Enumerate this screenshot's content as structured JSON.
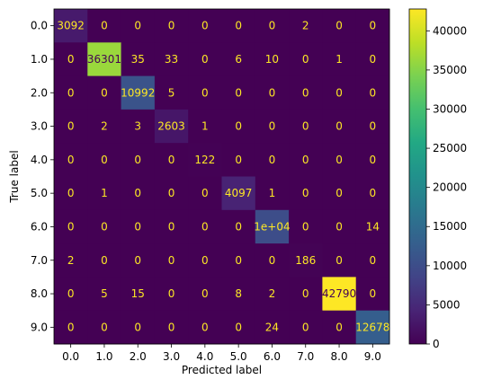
{
  "chart_data": {
    "type": "heatmap",
    "title": "",
    "xlabel": "Predicted label",
    "ylabel": "True label",
    "x_categories": [
      "0.0",
      "1.0",
      "2.0",
      "3.0",
      "4.0",
      "5.0",
      "6.0",
      "7.0",
      "8.0",
      "9.0"
    ],
    "y_categories": [
      "0.0",
      "1.0",
      "2.0",
      "3.0",
      "4.0",
      "5.0",
      "6.0",
      "7.0",
      "8.0",
      "9.0"
    ],
    "values": [
      [
        3092,
        0,
        0,
        0,
        0,
        0,
        0,
        2,
        0,
        0
      ],
      [
        0,
        36301,
        35,
        33,
        0,
        6,
        10,
        0,
        1,
        0
      ],
      [
        0,
        0,
        10992,
        5,
        0,
        0,
        0,
        0,
        0,
        0
      ],
      [
        0,
        2,
        3,
        2603,
        1,
        0,
        0,
        0,
        0,
        0
      ],
      [
        0,
        0,
        0,
        0,
        122,
        0,
        0,
        0,
        0,
        0
      ],
      [
        0,
        1,
        0,
        0,
        0,
        4097,
        1,
        0,
        0,
        0
      ],
      [
        0,
        0,
        0,
        0,
        0,
        0,
        10000,
        0,
        0,
        14
      ],
      [
        2,
        0,
        0,
        0,
        0,
        0,
        0,
        186,
        0,
        0
      ],
      [
        0,
        5,
        15,
        0,
        0,
        8,
        2,
        0,
        42790,
        0
      ],
      [
        0,
        0,
        0,
        0,
        0,
        0,
        24,
        0,
        0,
        12678
      ]
    ],
    "cell_labels": [
      [
        "3092",
        "0",
        "0",
        "0",
        "0",
        "0",
        "0",
        "2",
        "0",
        "0"
      ],
      [
        "0",
        "36301",
        "35",
        "33",
        "0",
        "6",
        "10",
        "0",
        "1",
        "0"
      ],
      [
        "0",
        "0",
        "10992",
        "5",
        "0",
        "0",
        "0",
        "0",
        "0",
        "0"
      ],
      [
        "0",
        "2",
        "3",
        "2603",
        "1",
        "0",
        "0",
        "0",
        "0",
        "0"
      ],
      [
        "0",
        "0",
        "0",
        "0",
        "122",
        "0",
        "0",
        "0",
        "0",
        "0"
      ],
      [
        "0",
        "1",
        "0",
        "0",
        "0",
        "4097",
        "1",
        "0",
        "0",
        "0"
      ],
      [
        "0",
        "0",
        "0",
        "0",
        "0",
        "0",
        "1e+04",
        "0",
        "0",
        "14"
      ],
      [
        "2",
        "0",
        "0",
        "0",
        "0",
        "0",
        "0",
        "186",
        "0",
        "0"
      ],
      [
        "0",
        "5",
        "15",
        "0",
        "0",
        "8",
        "2",
        "0",
        "42790",
        "0"
      ],
      [
        "0",
        "0",
        "0",
        "0",
        "0",
        "0",
        "24",
        "0",
        "0",
        "12678"
      ]
    ],
    "colormap": "viridis",
    "vmin": 0,
    "vmax": 42790,
    "colorbar_ticks": [
      0,
      5000,
      10000,
      15000,
      20000,
      25000,
      30000,
      35000,
      40000
    ],
    "colorbar_tick_labels": [
      "0",
      "5000",
      "10000",
      "15000",
      "20000",
      "25000",
      "30000",
      "35000",
      "40000"
    ],
    "label_color_dark_bg": "#fde725",
    "label_color_light_bg": "#440154"
  }
}
